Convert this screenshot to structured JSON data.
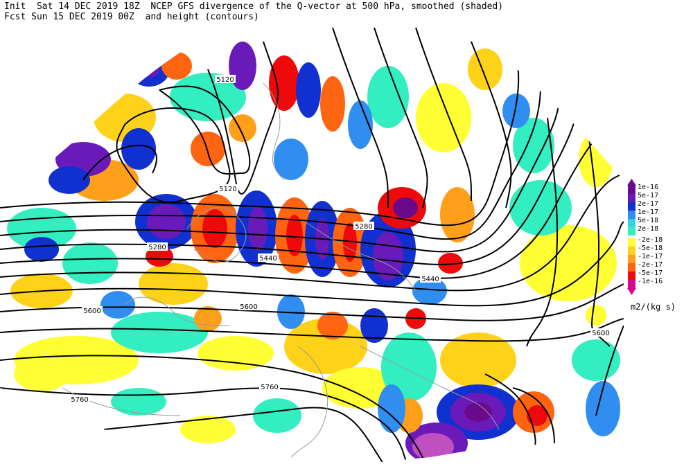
{
  "header": {
    "line1": "Init  Sat 14 DEC 2019 18Z  NCEP GFS divergence of the Q-vector at 500 hPa, smoothed (shaded)",
    "line2": "Fcst Sun 15 DEC 2019 00Z  and height (contours)"
  },
  "legend": {
    "items": [
      {
        "label": "1e-16",
        "color": "#6a0a8a"
      },
      {
        "label": "5e-17",
        "color": "#6a1ab8"
      },
      {
        "label": "2e-17",
        "color": "#1030d0"
      },
      {
        "label": "1e-17",
        "color": "#2f8ef0"
      },
      {
        "label": "5e-18",
        "color": "#36d2e6"
      },
      {
        "label": "2e-18",
        "color": "#33eec0"
      },
      {
        "label": "-2e-18",
        "color": "#ffff33"
      },
      {
        "label": "-5e-18",
        "color": "#ffd21a"
      },
      {
        "label": "-1e-17",
        "color": "#ff9f1a"
      },
      {
        "label": "-2e-17",
        "color": "#ff6410"
      },
      {
        "label": "-5e-17",
        "color": "#ee0a0a"
      },
      {
        "label": "-1e-16",
        "color": "#d60a90"
      }
    ],
    "units": "m2/(kg s)"
  },
  "contour_labels": [
    {
      "text": "5120"
    },
    {
      "text": "5120"
    },
    {
      "text": "5280"
    },
    {
      "text": "5280"
    },
    {
      "text": "5440"
    },
    {
      "text": "5440"
    },
    {
      "text": "5600"
    },
    {
      "text": "5600"
    },
    {
      "text": "5600"
    },
    {
      "text": "5760"
    },
    {
      "text": "5760"
    }
  ]
}
